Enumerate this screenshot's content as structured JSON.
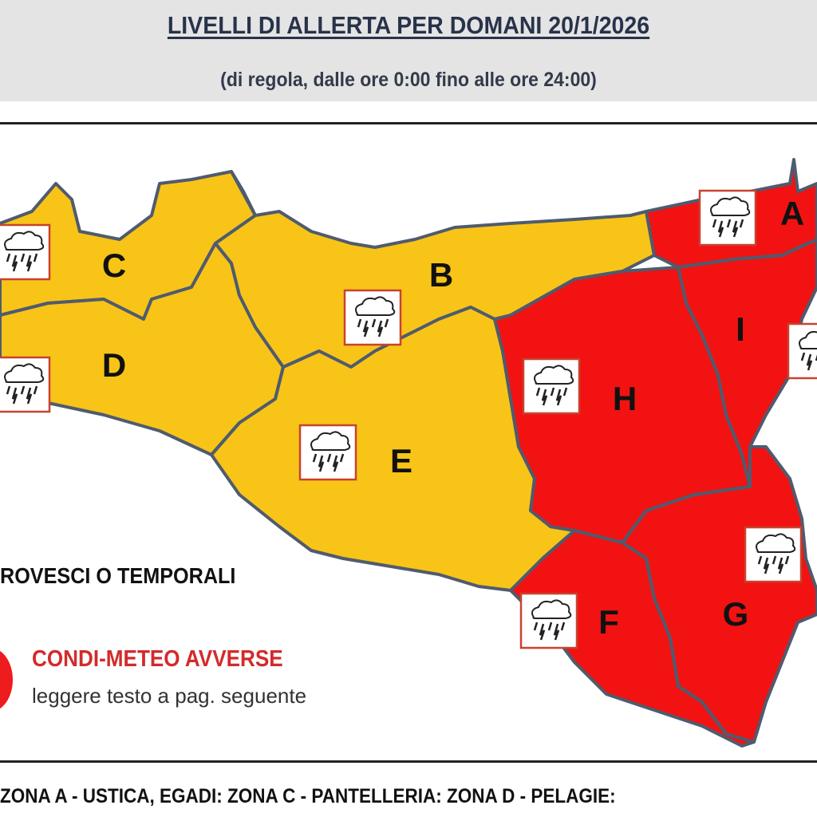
{
  "header": {
    "title": "LIVELLI DI ALLERTA PER DOMANI 20/1/2026",
    "subtitle": "(di regola, dalle ore 0:00 fino alle ore 24:00)"
  },
  "colors": {
    "yellow_alert": "#F8C417",
    "red_alert": "#F21212",
    "border": "#4f5b6e",
    "header_bg": "#e4e4e4"
  },
  "zones": [
    {
      "id": "A",
      "label": "A",
      "level": "red",
      "icon": "thunderstorm-icon"
    },
    {
      "id": "B",
      "label": "B",
      "level": "yellow",
      "icon": "thunderstorm-icon"
    },
    {
      "id": "C",
      "label": "C",
      "level": "yellow",
      "icon": "thunderstorm-icon"
    },
    {
      "id": "D",
      "label": "D",
      "level": "yellow",
      "icon": "thunderstorm-icon"
    },
    {
      "id": "E",
      "label": "E",
      "level": "yellow",
      "icon": "thunderstorm-icon"
    },
    {
      "id": "F",
      "label": "F",
      "level": "red",
      "icon": "thunderstorm-icon"
    },
    {
      "id": "G",
      "label": "G",
      "level": "red",
      "icon": "thunderstorm-icon"
    },
    {
      "id": "H",
      "label": "H",
      "level": "red",
      "icon": "thunderstorm-icon"
    },
    {
      "id": "I",
      "label": "I",
      "level": "red",
      "icon": "thunderstorm-icon"
    }
  ],
  "legend": {
    "storm_label": "ROVESCI O TEMPORALI",
    "adverse_label": "CONDI-METEO AVVERSE",
    "adverse_note": "leggere testo a pag. seguente"
  },
  "footer": {
    "text": "ZONA A - USTICA, EGADI: ZONA C - PANTELLERIA: ZONA D - PELAGIE:"
  }
}
